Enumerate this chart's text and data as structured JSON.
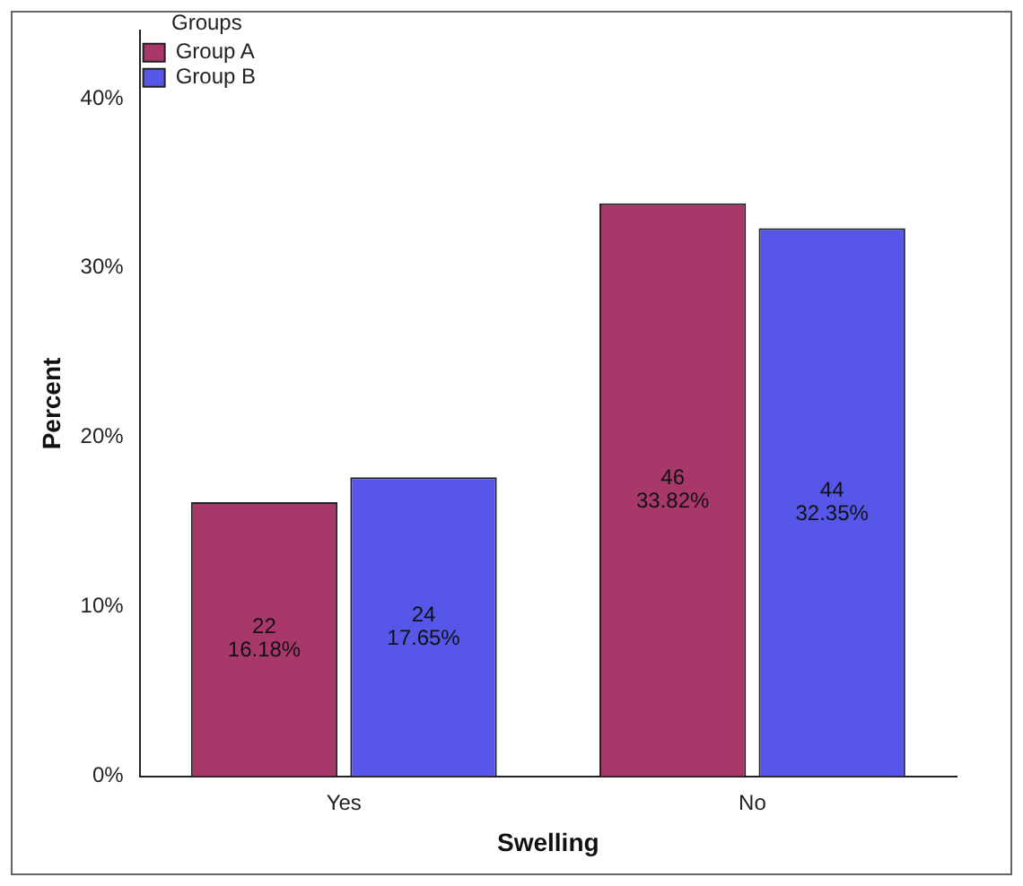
{
  "chart_data": {
    "type": "bar",
    "xlabel": "Swelling",
    "ylabel": "Percent",
    "legend_title": "Groups",
    "legend": "top left",
    "grid": false,
    "categories": [
      "Yes",
      "No"
    ],
    "series": [
      {
        "name": "Group A",
        "color": "#a8376a",
        "values": [
          16.18,
          33.82
        ],
        "value_labels": [
          "22\n16.18%",
          "46\n33.82%"
        ]
      },
      {
        "name": "Group B",
        "color": "#5656e8",
        "values": [
          17.65,
          32.35
        ],
        "value_labels": [
          "24\n17.65%",
          "44\n32.35%"
        ]
      }
    ],
    "ylim": [
      0,
      44
    ],
    "yticks": [
      {
        "value": 0,
        "label": "0%"
      },
      {
        "value": 10,
        "label": "10%"
      },
      {
        "value": 20,
        "label": "20%"
      },
      {
        "value": 30,
        "label": "30%"
      },
      {
        "value": 40,
        "label": "40%"
      }
    ]
  }
}
